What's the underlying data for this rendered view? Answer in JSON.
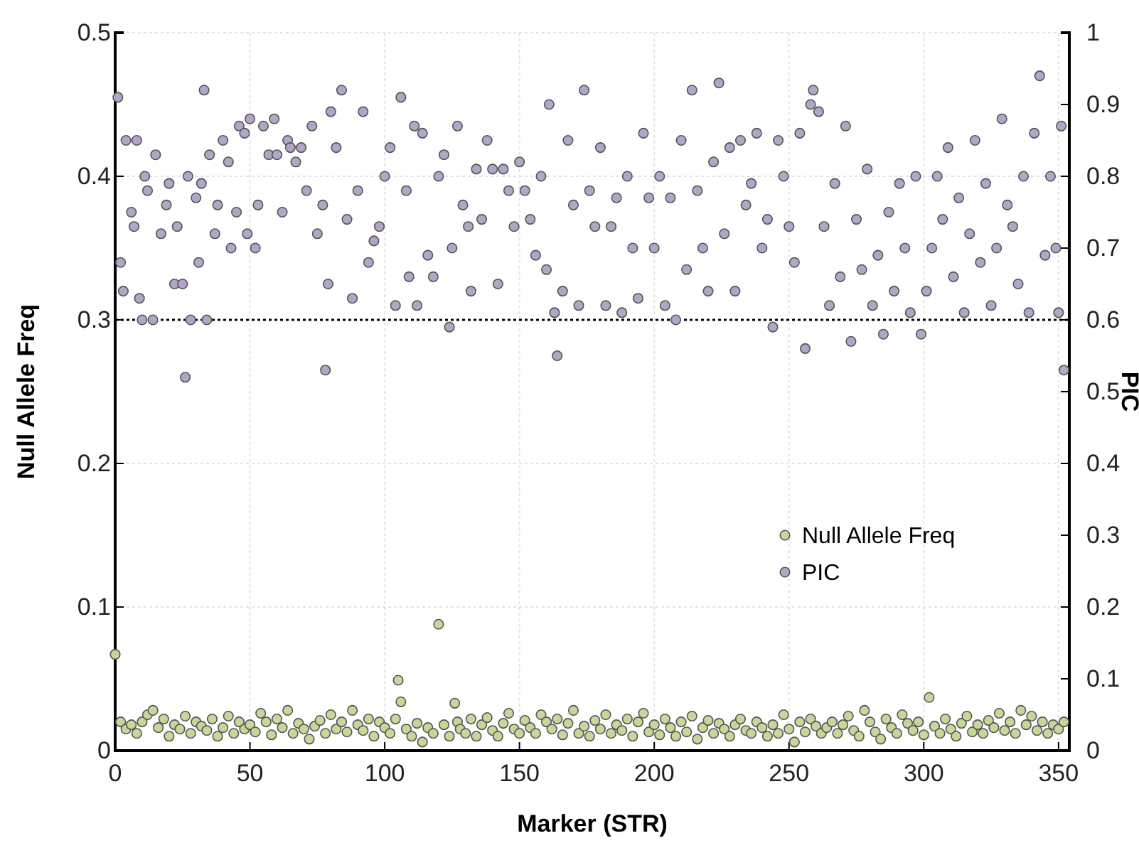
{
  "chart_data": {
    "type": "scatter",
    "xlabel": "Marker (STR)",
    "ylabel": "Null Allele Freq",
    "y2label": "PIC",
    "xlim": [
      0,
      354
    ],
    "xticks": [
      0,
      50,
      100,
      150,
      200,
      250,
      300,
      350
    ],
    "ylim": [
      0,
      0.5
    ],
    "yticks": [
      0,
      0.1,
      0.2,
      0.3,
      0.4,
      0.5
    ],
    "y2lim": [
      0,
      1
    ],
    "y2ticks": [
      0,
      0.1,
      0.2,
      0.3,
      0.4,
      0.5,
      0.6,
      0.7,
      0.8,
      0.9,
      1
    ],
    "grid": true,
    "legend": "right",
    "marker": "circle",
    "ref_lines": [
      {
        "axis": "y",
        "value": 0.3,
        "color": "#000000",
        "line_style": "dotted"
      }
    ],
    "series": [
      {
        "name": "Null Allele Freq",
        "color": "#c5d89a",
        "x": [
          0,
          2,
          4,
          6,
          8,
          10,
          12,
          14,
          16,
          18,
          20,
          22,
          24,
          26,
          28,
          30,
          32,
          34,
          36,
          38,
          40,
          42,
          44,
          46,
          48,
          50,
          52,
          54,
          56,
          58,
          60,
          62,
          64,
          66,
          68,
          70,
          72,
          74,
          76,
          78,
          80,
          82,
          84,
          86,
          88,
          90,
          92,
          94,
          96,
          98,
          100,
          102,
          104,
          105,
          106,
          108,
          110,
          112,
          114,
          116,
          118,
          120,
          122,
          124,
          126,
          127,
          128,
          130,
          132,
          134,
          136,
          138,
          140,
          142,
          144,
          146,
          148,
          150,
          152,
          154,
          156,
          158,
          160,
          162,
          164,
          166,
          168,
          170,
          172,
          174,
          176,
          178,
          180,
          182,
          184,
          186,
          188,
          190,
          192,
          194,
          196,
          198,
          200,
          202,
          204,
          206,
          208,
          210,
          212,
          214,
          216,
          218,
          220,
          222,
          224,
          226,
          228,
          230,
          232,
          234,
          236,
          238,
          240,
          242,
          244,
          246,
          248,
          250,
          252,
          254,
          256,
          258,
          260,
          262,
          264,
          266,
          268,
          270,
          272,
          274,
          276,
          278,
          280,
          282,
          284,
          286,
          288,
          290,
          292,
          294,
          296,
          298,
          300,
          302,
          304,
          306,
          308,
          310,
          312,
          314,
          316,
          318,
          320,
          322,
          324,
          326,
          328,
          330,
          332,
          334,
          336,
          338,
          340,
          342,
          344,
          346,
          348,
          350,
          352
        ],
        "values": [
          0.067,
          0.02,
          0.015,
          0.018,
          0.012,
          0.02,
          0.025,
          0.028,
          0.016,
          0.022,
          0.01,
          0.018,
          0.015,
          0.024,
          0.012,
          0.02,
          0.017,
          0.014,
          0.022,
          0.01,
          0.016,
          0.024,
          0.012,
          0.02,
          0.015,
          0.018,
          0.013,
          0.026,
          0.02,
          0.011,
          0.022,
          0.016,
          0.028,
          0.012,
          0.019,
          0.015,
          0.008,
          0.017,
          0.021,
          0.012,
          0.025,
          0.015,
          0.02,
          0.013,
          0.028,
          0.018,
          0.014,
          0.022,
          0.01,
          0.02,
          0.016,
          0.012,
          0.022,
          0.049,
          0.034,
          0.015,
          0.01,
          0.019,
          0.006,
          0.016,
          0.012,
          0.088,
          0.018,
          0.01,
          0.033,
          0.02,
          0.015,
          0.012,
          0.022,
          0.01,
          0.018,
          0.023,
          0.014,
          0.01,
          0.019,
          0.026,
          0.015,
          0.012,
          0.021,
          0.016,
          0.012,
          0.025,
          0.02,
          0.015,
          0.022,
          0.011,
          0.019,
          0.028,
          0.012,
          0.017,
          0.01,
          0.021,
          0.015,
          0.025,
          0.012,
          0.018,
          0.014,
          0.022,
          0.01,
          0.02,
          0.026,
          0.013,
          0.018,
          0.011,
          0.022,
          0.016,
          0.01,
          0.02,
          0.013,
          0.024,
          0.008,
          0.016,
          0.021,
          0.012,
          0.019,
          0.015,
          0.01,
          0.018,
          0.022,
          0.014,
          0.012,
          0.02,
          0.016,
          0.01,
          0.018,
          0.012,
          0.025,
          0.015,
          0.006,
          0.02,
          0.013,
          0.022,
          0.017,
          0.012,
          0.016,
          0.02,
          0.012,
          0.018,
          0.024,
          0.014,
          0.01,
          0.028,
          0.02,
          0.013,
          0.008,
          0.022,
          0.016,
          0.012,
          0.025,
          0.019,
          0.014,
          0.02,
          0.011,
          0.037,
          0.017,
          0.012,
          0.022,
          0.015,
          0.01,
          0.019,
          0.024,
          0.013,
          0.018,
          0.012,
          0.021,
          0.016,
          0.026,
          0.014,
          0.02,
          0.012,
          0.028,
          0.018,
          0.024,
          0.014,
          0.02,
          0.012,
          0.018,
          0.015,
          0.02
        ]
      },
      {
        "name": "PIC",
        "color": "#b3a5c8",
        "axis": "y2",
        "x": [
          1,
          2,
          3,
          4,
          6,
          7,
          8,
          9,
          10,
          11,
          12,
          14,
          15,
          17,
          19,
          20,
          22,
          23,
          25,
          26,
          27,
          28,
          30,
          31,
          32,
          33,
          34,
          35,
          37,
          38,
          40,
          42,
          43,
          45,
          46,
          48,
          49,
          50,
          52,
          53,
          55,
          57,
          59,
          60,
          62,
          64,
          65,
          67,
          69,
          71,
          73,
          75,
          77,
          78,
          79,
          80,
          82,
          84,
          86,
          88,
          90,
          92,
          94,
          96,
          98,
          100,
          102,
          104,
          106,
          108,
          109,
          111,
          112,
          114,
          116,
          118,
          120,
          122,
          124,
          125,
          127,
          129,
          131,
          132,
          134,
          136,
          138,
          140,
          142,
          144,
          146,
          148,
          150,
          152,
          154,
          156,
          158,
          160,
          161,
          163,
          164,
          166,
          168,
          170,
          172,
          174,
          176,
          178,
          180,
          182,
          184,
          186,
          188,
          190,
          192,
          194,
          196,
          198,
          200,
          202,
          204,
          206,
          208,
          210,
          212,
          214,
          216,
          218,
          220,
          222,
          224,
          226,
          228,
          230,
          232,
          234,
          236,
          238,
          240,
          242,
          244,
          246,
          248,
          250,
          252,
          254,
          256,
          258,
          259,
          261,
          263,
          265,
          267,
          269,
          271,
          273,
          275,
          277,
          279,
          281,
          283,
          285,
          287,
          289,
          291,
          293,
          295,
          297,
          299,
          301,
          303,
          305,
          307,
          309,
          311,
          313,
          315,
          317,
          319,
          321,
          323,
          325,
          327,
          329,
          331,
          333,
          335,
          337,
          339,
          341,
          343,
          345,
          347,
          349,
          350,
          351,
          352
        ],
        "values": [
          0.91,
          0.68,
          0.64,
          0.85,
          0.75,
          0.73,
          0.85,
          0.63,
          0.6,
          0.8,
          0.78,
          0.6,
          0.83,
          0.72,
          0.76,
          0.79,
          0.65,
          0.73,
          0.65,
          0.52,
          0.8,
          0.6,
          0.77,
          0.68,
          0.79,
          0.92,
          0.6,
          0.83,
          0.72,
          0.76,
          0.85,
          0.82,
          0.7,
          0.75,
          0.87,
          0.86,
          0.72,
          0.88,
          0.7,
          0.76,
          0.87,
          0.83,
          0.88,
          0.83,
          0.75,
          0.85,
          0.84,
          0.82,
          0.84,
          0.78,
          0.87,
          0.72,
          0.76,
          0.53,
          0.65,
          0.89,
          0.84,
          0.92,
          0.74,
          0.63,
          0.78,
          0.89,
          0.68,
          0.71,
          0.73,
          0.8,
          0.84,
          0.62,
          0.91,
          0.78,
          0.66,
          0.87,
          0.62,
          0.86,
          0.69,
          0.66,
          0.8,
          0.83,
          0.59,
          0.7,
          0.87,
          0.76,
          0.73,
          0.64,
          0.81,
          0.74,
          0.85,
          0.81,
          0.65,
          0.81,
          0.78,
          0.73,
          0.82,
          0.78,
          0.74,
          0.69,
          0.8,
          0.67,
          0.9,
          0.61,
          0.55,
          0.64,
          0.85,
          0.76,
          0.62,
          0.92,
          0.78,
          0.73,
          0.84,
          0.62,
          0.73,
          0.77,
          0.61,
          0.8,
          0.7,
          0.63,
          0.86,
          0.77,
          0.7,
          0.8,
          0.62,
          0.77,
          0.6,
          0.85,
          0.67,
          0.92,
          0.78,
          0.7,
          0.64,
          0.82,
          0.93,
          0.72,
          0.84,
          0.64,
          0.85,
          0.76,
          0.79,
          0.86,
          0.7,
          0.74,
          0.59,
          0.85,
          0.8,
          0.73,
          0.68,
          0.86,
          0.56,
          0.9,
          0.92,
          0.89,
          0.73,
          0.62,
          0.79,
          0.66,
          0.87,
          0.57,
          0.74,
          0.67,
          0.81,
          0.62,
          0.69,
          0.58,
          0.75,
          0.64,
          0.79,
          0.7,
          0.61,
          0.8,
          0.58,
          0.64,
          0.7,
          0.8,
          0.74,
          0.84,
          0.66,
          0.77,
          0.61,
          0.72,
          0.85,
          0.68,
          0.79,
          0.62,
          0.7,
          0.88,
          0.76,
          0.73,
          0.65,
          0.8,
          0.61,
          0.86,
          0.94,
          0.69,
          0.8,
          0.7,
          0.61,
          0.87,
          0.53
        ]
      }
    ]
  }
}
